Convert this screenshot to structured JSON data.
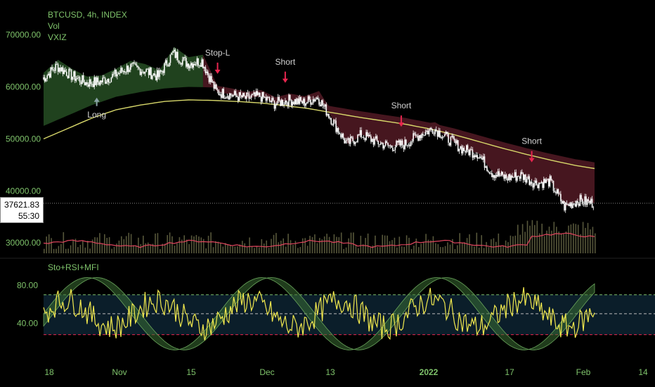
{
  "header": {
    "symbol": "BTCUSD, 4h, INDEX",
    "indicators": [
      "Vol",
      "VXIZ"
    ]
  },
  "price_tag": {
    "price": "37621.83",
    "countdown": "55:30"
  },
  "oscillator": {
    "title": "Sto+RSI+MFI"
  },
  "colors": {
    "background": "#000000",
    "price": "#ffffff",
    "ema_fast": "#d7d76a",
    "band_bull": "#2e5e2b",
    "band_bear": "#5e1e2a",
    "volume_ma": "#e0455e",
    "buy": "#8aa3a6",
    "sell": "#e8264f",
    "axis_text": "#7fc36b"
  },
  "chart_data": [
    {
      "type": "line",
      "title": "BTCUSD, 4h, INDEX",
      "y_ticks": [
        30000,
        40000,
        50000,
        60000,
        70000
      ],
      "y_tick_labels": [
        "30000.00",
        "40000.00",
        "50000.00",
        "60000.00",
        "70000.00"
      ],
      "ylim": [
        28000,
        74000
      ],
      "x_ticks": [
        "18",
        "Nov",
        "15",
        "Dec",
        "13",
        "2022",
        "17",
        "Feb",
        "14"
      ],
      "last_price": 37621.83,
      "series": [
        {
          "x": [
            0,
            3,
            6,
            9,
            12,
            15,
            18,
            21,
            24,
            27,
            30,
            33,
            36,
            39,
            42,
            45,
            48,
            51,
            54,
            57,
            60,
            63,
            66,
            69,
            72,
            75,
            78,
            81,
            84,
            87,
            90,
            93,
            96,
            99,
            102,
            105,
            108,
            111,
            114
          ],
          "values": [
            61500,
            64000,
            62200,
            60800,
            61000,
            62300,
            63800,
            63200,
            62000,
            66500,
            64500,
            65000,
            59000,
            58500,
            57800,
            58200,
            56800,
            57500,
            57000,
            58000,
            53500,
            49000,
            50800,
            49500,
            48500,
            49000,
            50800,
            52000,
            50000,
            48000,
            47200,
            43500,
            42500,
            43000,
            41500,
            41800,
            37000,
            38200,
            37621
          ]
        },
        {
          "x": [
            0,
            5,
            10,
            15,
            20,
            25,
            30,
            35,
            40,
            45,
            50,
            55,
            60,
            65,
            70,
            75,
            80,
            85,
            90,
            95,
            100,
            105,
            110,
            114
          ],
          "values": [
            50000,
            52000,
            54000,
            55600,
            56500,
            57200,
            57500,
            57400,
            57200,
            56900,
            56400,
            55800,
            55000,
            54200,
            53500,
            52800,
            51900,
            50800,
            49500,
            48200,
            47000,
            45900,
            44900,
            44300
          ]
        }
      ]
    },
    {
      "type": "line",
      "title": "Sto+RSI+MFI",
      "y_ticks": [
        40,
        80
      ],
      "y_tick_labels": [
        "40.00",
        "80.00"
      ],
      "ylim": [
        10,
        95
      ],
      "levels": [
        70,
        50,
        28
      ]
    }
  ],
  "signals": [
    {
      "label": "Long",
      "kind": "buy"
    },
    {
      "label": "Stop-L",
      "kind": "sell"
    },
    {
      "label": "Short",
      "kind": "sell"
    },
    {
      "label": "Short",
      "kind": "sell"
    },
    {
      "label": "Short",
      "kind": "sell"
    }
  ]
}
